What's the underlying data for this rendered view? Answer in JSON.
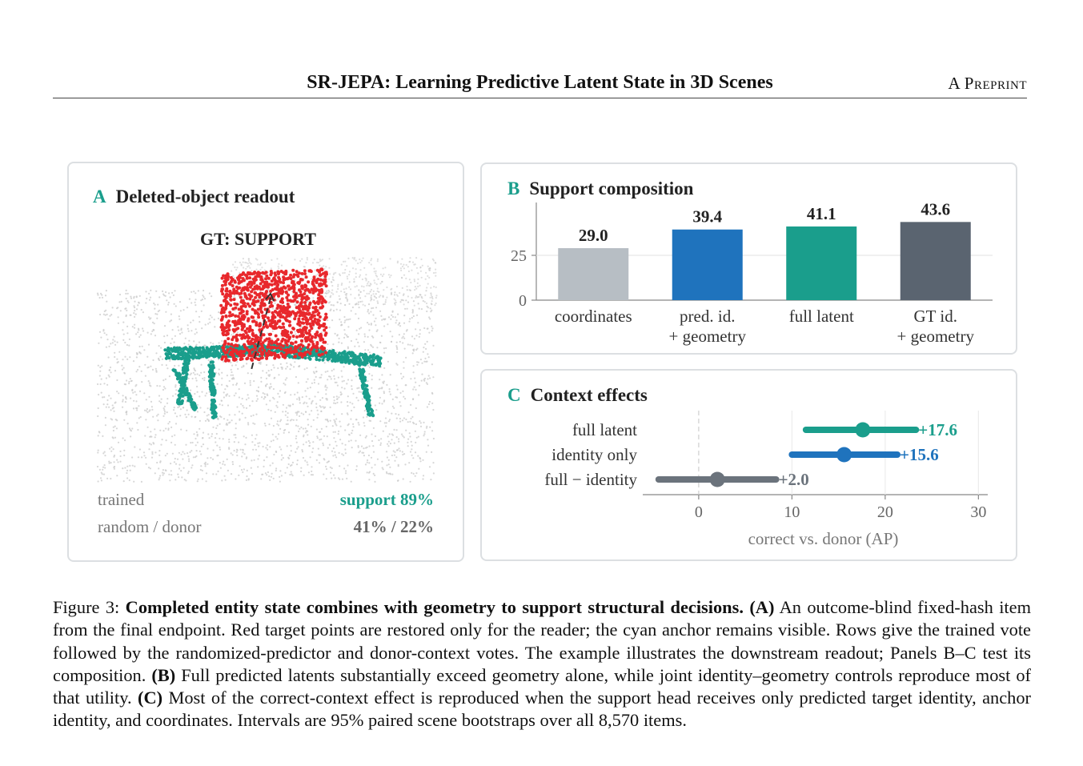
{
  "header": {
    "title": "SR-JEPA: Learning Predictive Latent State in 3D Scenes",
    "right_label": "A Preprint"
  },
  "panel_a": {
    "letter": "A",
    "title": "Deleted-object readout",
    "gt_label": "GT: SUPPORT",
    "rows": [
      {
        "label": "trained",
        "value": "support  89%"
      },
      {
        "label": "random / donor",
        "value": "41% / 22%"
      }
    ]
  },
  "panel_b": {
    "letter": "B",
    "title": "Support composition",
    "chart_data": {
      "type": "bar",
      "categories": [
        "coordinates",
        "pred. id. + geometry",
        "full latent",
        "GT id. + geometry"
      ],
      "category_lines": [
        [
          "coordinates"
        ],
        [
          "pred. id.",
          "+ geometry"
        ],
        [
          "full latent"
        ],
        [
          "GT id.",
          "+ geometry"
        ]
      ],
      "values": [
        29.0,
        39.4,
        41.1,
        43.6
      ],
      "value_labels": [
        "29.0",
        "39.4",
        "41.1",
        "43.6"
      ],
      "colors": [
        "#b7bec4",
        "#1f73bd",
        "#1a9e8c",
        "#5a6470"
      ],
      "yticks": [
        0,
        25
      ],
      "ylim": [
        0,
        50
      ],
      "grid": true
    }
  },
  "panel_c": {
    "letter": "C",
    "title": "Context effects",
    "chart_data": {
      "type": "scatter",
      "categories": [
        "full latent",
        "identity only",
        "full − identity"
      ],
      "points": [
        17.6,
        15.6,
        2.0
      ],
      "intervals": [
        [
          11.5,
          23.3
        ],
        [
          10.0,
          21.3
        ],
        [
          -4.3,
          8.3
        ]
      ],
      "value_labels": [
        "+17.6",
        "+15.6",
        "+2.0"
      ],
      "colors": [
        "#1a9e8c",
        "#1f73bd",
        "#6b737c"
      ],
      "xticks": [
        0,
        10,
        20,
        30
      ],
      "xlim": [
        -6,
        31
      ],
      "xlabel": "correct vs. donor (AP)"
    }
  },
  "caption": {
    "prefix": "Figure 3: ",
    "bold_title": "Completed entity state combines with geometry to support structural decisions.",
    "part_a_tag": "(A)",
    "part_a": " An outcome-blind fixed-hash item from the final endpoint. Red target points are restored only for the reader; the cyan anchor remains visible. Rows give the trained vote followed by the randomized-predictor and donor-context votes. The example illustrates the downstream readout; Panels B–C test its composition. ",
    "part_b_tag": "(B)",
    "part_b": " Full predicted latents substantially exceed geometry alone, while joint identity–geometry controls reproduce most of that utility. ",
    "part_c_tag": "(C)",
    "part_c": " Most of the correct-context effect is reproduced when the support head receives only predicted target identity, anchor identity, and coordinates. Intervals are 95% paired scene bootstraps over all 8,570 items."
  },
  "colors": {
    "teal": "#1a9e8c",
    "blue": "#1f73bd",
    "red_points": "#e8282c",
    "gray_points": "#c9c9c9"
  }
}
